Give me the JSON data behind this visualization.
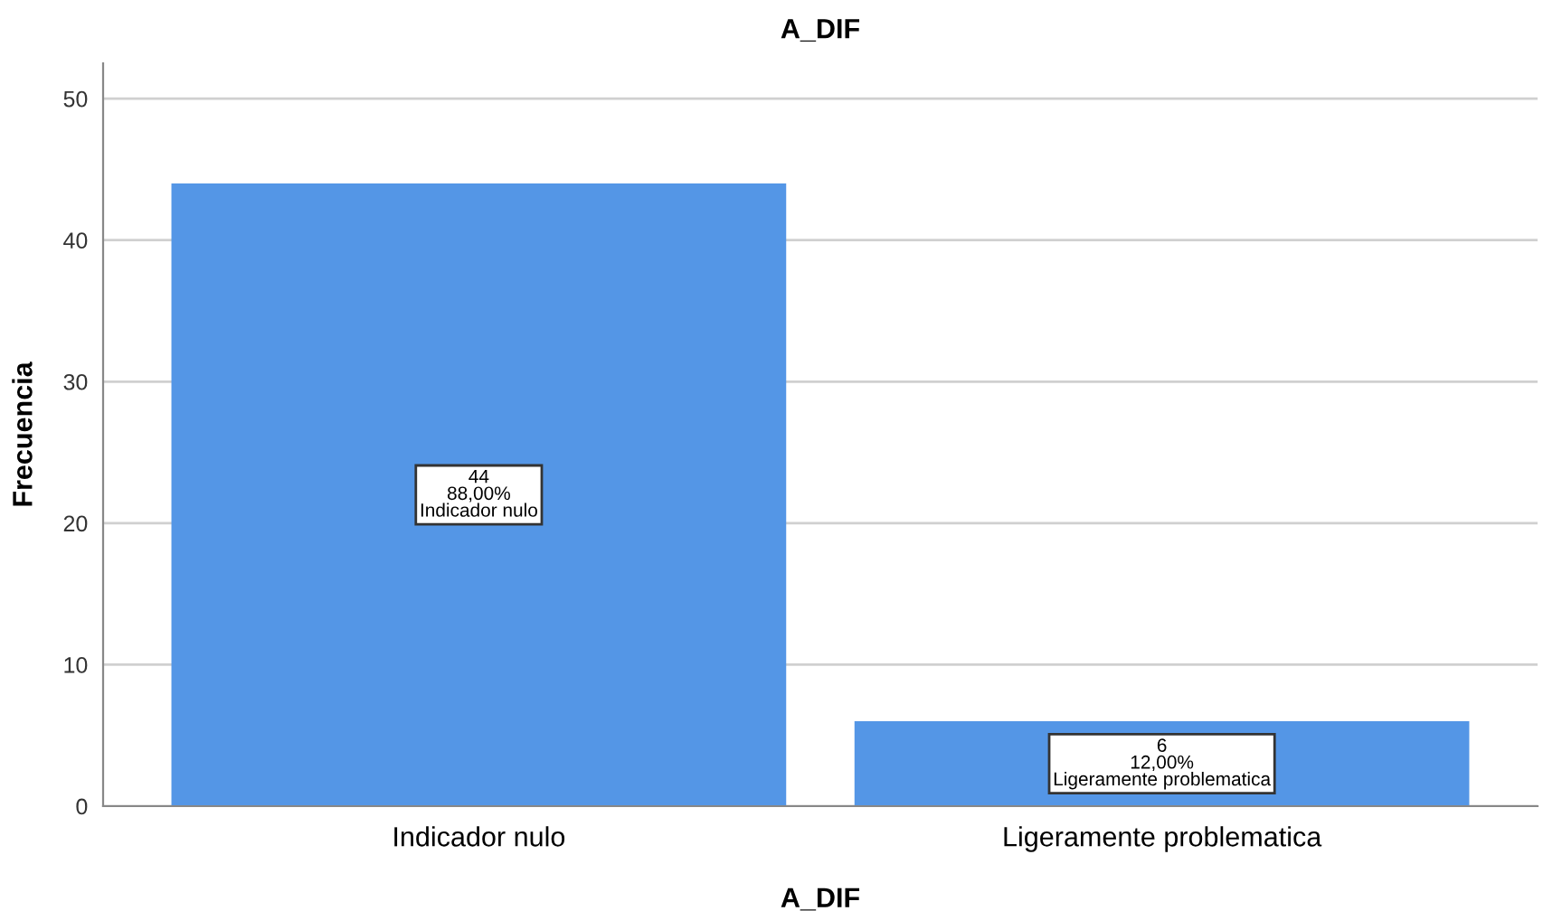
{
  "chart_data": {
    "type": "bar",
    "title": "A_DIF",
    "xlabel": "A_DIF",
    "ylabel": "Frecuencia",
    "categories": [
      "Indicador nulo",
      "Ligeramente problematica"
    ],
    "values": [
      44,
      6
    ],
    "color": "#5496e6",
    "value_labels": [
      "44\n88,00%\nIndicador nulo",
      "6\n12,00%\nLigeramente problematica"
    ],
    "ylim": [
      0,
      52.5
    ],
    "yticks": [
      0,
      10,
      20,
      30,
      40,
      50
    ],
    "grid": "y"
  }
}
